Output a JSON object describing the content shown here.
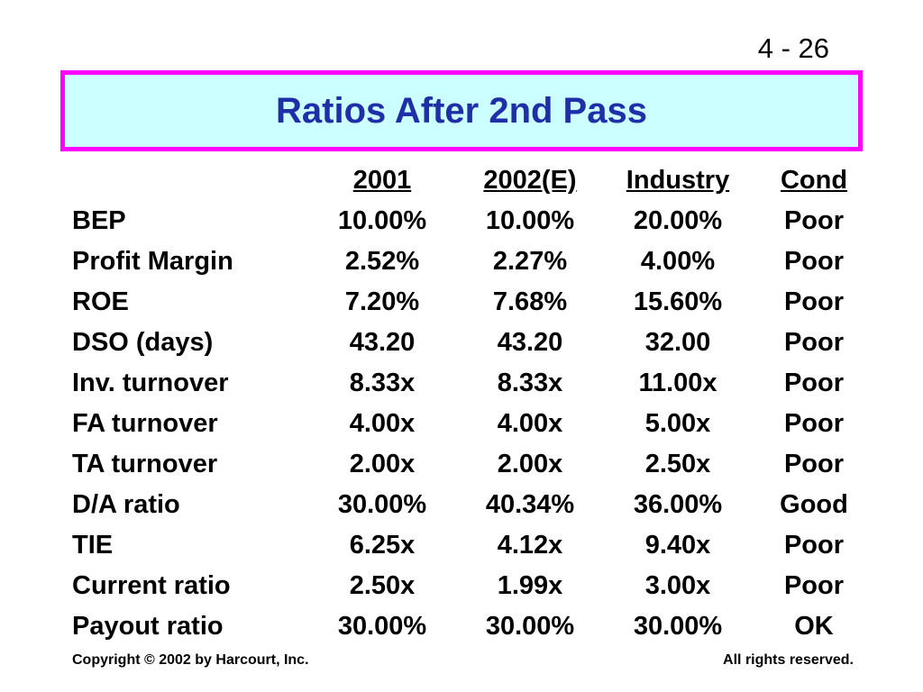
{
  "slide_number": "4 - 26",
  "title": "Ratios After 2nd Pass",
  "table": {
    "headers": [
      "",
      "2001",
      "2002(E)",
      "Industry",
      "Cond"
    ],
    "rows": [
      [
        "BEP",
        "10.00%",
        "10.00%",
        "20.00%",
        "Poor"
      ],
      [
        "Profit Margin",
        "2.52%",
        "2.27%",
        "4.00%",
        "Poor"
      ],
      [
        "ROE",
        "7.20%",
        "7.68%",
        "15.60%",
        "Poor"
      ],
      [
        "DSO (days)",
        "43.20",
        "43.20",
        "32.00",
        "Poor"
      ],
      [
        "Inv. turnover",
        "8.33x",
        "8.33x",
        "11.00x",
        "Poor"
      ],
      [
        "FA turnover",
        "4.00x",
        "4.00x",
        "5.00x",
        "Poor"
      ],
      [
        "TA turnover",
        "2.00x",
        "2.00x",
        "2.50x",
        "Poor"
      ],
      [
        "D/A ratio",
        "30.00%",
        "40.34%",
        "36.00%",
        "Good"
      ],
      [
        "TIE",
        "6.25x",
        "4.12x",
        "9.40x",
        "Poor"
      ],
      [
        "Current ratio",
        "2.50x",
        "1.99x",
        "3.00x",
        "Poor"
      ],
      [
        "Payout ratio",
        "30.00%",
        "30.00%",
        "30.00%",
        "OK"
      ]
    ]
  },
  "footer": {
    "copyright": "Copyright © 2002 by Harcourt, Inc.",
    "rights": "All rights reserved."
  },
  "colors": {
    "title_text": "#1f2fa8",
    "title_background": "#ccffff",
    "title_border": "#ff00ff"
  }
}
